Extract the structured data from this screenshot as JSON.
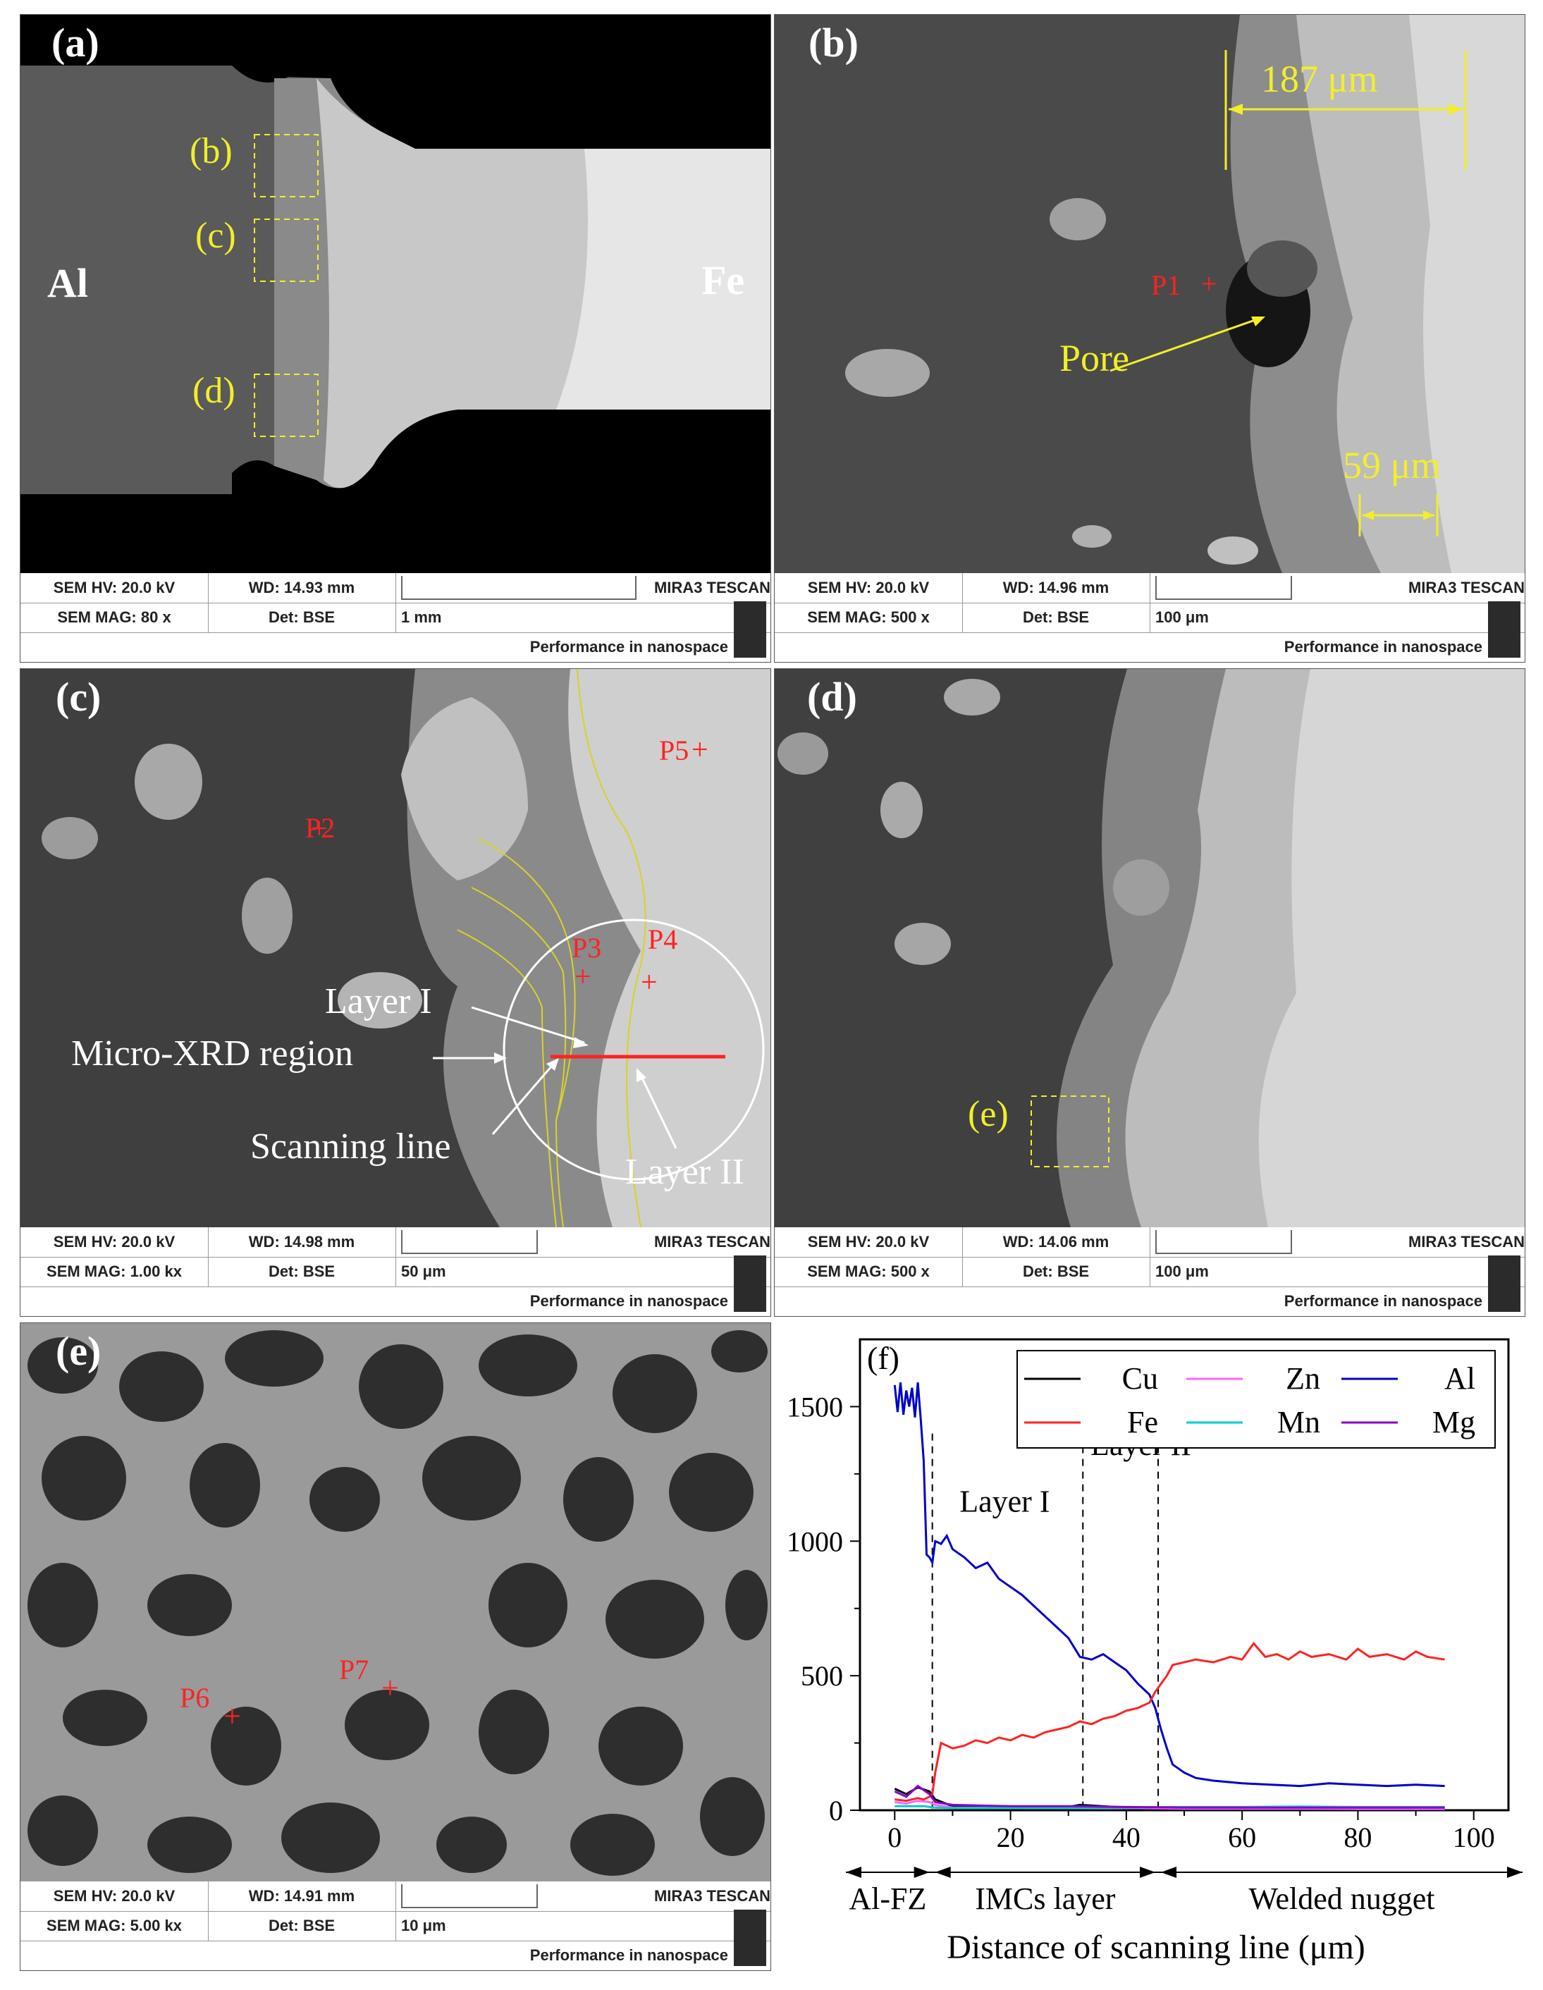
{
  "panels": {
    "a": {
      "label": "(a)",
      "annotations": {
        "b": "(b)",
        "c": "(c)",
        "d": "(d)",
        "al": "Al",
        "fe": "Fe"
      },
      "info": {
        "hv": "SEM HV: 20.0 kV",
        "wd": "WD: 14.93 mm",
        "mag": "SEM MAG: 80 x",
        "det": "Det: BSE",
        "scale": "1 mm",
        "brand": "MIRA3 TESCAN",
        "perf": "Performance in nanospace"
      }
    },
    "b": {
      "label": "(b)",
      "annotations": {
        "w187": "187 μm",
        "p1": "P1",
        "pore": "Pore",
        "w59": "59 μm"
      },
      "info": {
        "hv": "SEM HV: 20.0 kV",
        "wd": "WD: 14.96 mm",
        "mag": "SEM MAG: 500 x",
        "det": "Det: BSE",
        "scale": "100 μm",
        "brand": "MIRA3 TESCAN",
        "perf": "Performance in nanospace"
      }
    },
    "c": {
      "label": "(c)",
      "annotations": {
        "p2": "P2",
        "p3": "P3",
        "p4": "P4",
        "p5": "P5",
        "layer1": "Layer I",
        "microxrd": "Micro-XRD region",
        "scanline": "Scanning line",
        "layer2": "Layer II"
      },
      "info": {
        "hv": "SEM HV: 20.0 kV",
        "wd": "WD: 14.98 mm",
        "mag": "SEM MAG: 1.00 kx",
        "det": "Det: BSE",
        "scale": "50 μm",
        "brand": "MIRA3 TESCAN",
        "perf": "Performance in nanospace"
      }
    },
    "d": {
      "label": "(d)",
      "annotations": {
        "e": "(e)"
      },
      "info": {
        "hv": "SEM HV: 20.0 kV",
        "wd": "WD: 14.06 mm",
        "mag": "SEM MAG: 500 x",
        "det": "Det: BSE",
        "scale": "100 μm",
        "brand": "MIRA3 TESCAN",
        "perf": "Performance in nanospace"
      }
    },
    "e": {
      "label": "(e)",
      "annotations": {
        "p6": "P6",
        "p7": "P7"
      },
      "info": {
        "hv": "SEM HV: 20.0 kV",
        "wd": "WD: 14.91 mm",
        "mag": "SEM MAG: 5.00 kx",
        "det": "Det: BSE",
        "scale": "10 μm",
        "brand": "MIRA3 TESCAN",
        "perf": "Performance in nanospace"
      }
    }
  },
  "chart_data": {
    "type": "line",
    "label": "(f)",
    "xlabel": "Distance of scanning line (μm)",
    "xlim": [
      -6,
      106
    ],
    "ylim": [
      0,
      1750
    ],
    "x_ticks": [
      0,
      20,
      40,
      60,
      80,
      100
    ],
    "y_ticks": [
      0,
      500,
      1000,
      1500
    ],
    "region_markers": [
      6.5,
      32.5,
      45.5
    ],
    "region_labels": [
      {
        "text": "Layer I",
        "x": 19,
        "y": 1110
      },
      {
        "text": "Layer II",
        "x": 42.5,
        "y": 1320
      }
    ],
    "zones": [
      {
        "text": "Al-FZ",
        "from": -6,
        "to": 6.5
      },
      {
        "text": "IMCs layer",
        "from": 6.5,
        "to": 45.5
      },
      {
        "text": "Welded nugget",
        "from": 45.5,
        "to": 106
      }
    ],
    "series": [
      {
        "name": "Cu",
        "color": "#000000",
        "x": [
          0,
          2,
          4,
          6,
          7,
          10,
          20,
          30,
          32,
          40,
          50,
          60,
          70,
          80,
          90,
          95
        ],
        "values": [
          80,
          60,
          85,
          70,
          40,
          15,
          10,
          12,
          20,
          10,
          8,
          10,
          8,
          8,
          8,
          8
        ]
      },
      {
        "name": "Zn",
        "color": "#ff66ff",
        "x": [
          0,
          2,
          4,
          6,
          7,
          10,
          20,
          30,
          40,
          50,
          60,
          70,
          80,
          90,
          95
        ],
        "values": [
          30,
          25,
          35,
          30,
          20,
          10,
          8,
          10,
          8,
          6,
          6,
          6,
          5,
          5,
          5
        ]
      },
      {
        "name": "Al",
        "color": "#0000cc",
        "x": [
          0,
          0.5,
          1,
          1.5,
          2,
          2.5,
          3,
          3.5,
          4,
          4.5,
          5,
          5.5,
          6,
          6.5,
          7,
          8,
          9,
          10,
          12,
          14,
          16,
          18,
          20,
          22,
          24,
          26,
          28,
          30,
          32,
          34,
          36,
          38,
          40,
          42,
          44,
          45,
          46,
          47,
          48,
          50,
          52,
          55,
          60,
          65,
          70,
          75,
          80,
          85,
          90,
          95
        ],
        "values": [
          1580,
          1480,
          1590,
          1470,
          1560,
          1500,
          1570,
          1460,
          1590,
          1450,
          1300,
          950,
          940,
          920,
          1000,
          990,
          1020,
          970,
          940,
          900,
          920,
          860,
          830,
          800,
          760,
          720,
          680,
          640,
          570,
          560,
          580,
          550,
          520,
          470,
          430,
          380,
          300,
          230,
          170,
          140,
          120,
          110,
          100,
          95,
          90,
          100,
          95,
          90,
          95,
          90
        ]
      },
      {
        "name": "Fe",
        "color": "#ff2222",
        "x": [
          0,
          2,
          4,
          5,
          6,
          6.5,
          7,
          8,
          10,
          12,
          14,
          16,
          18,
          20,
          22,
          24,
          26,
          28,
          30,
          32,
          34,
          36,
          38,
          40,
          42,
          44,
          45,
          46,
          47,
          48,
          50,
          52,
          55,
          58,
          60,
          62,
          64,
          66,
          68,
          70,
          72,
          75,
          78,
          80,
          82,
          85,
          88,
          90,
          92,
          95
        ],
        "values": [
          40,
          35,
          45,
          40,
          50,
          60,
          140,
          250,
          230,
          240,
          260,
          250,
          270,
          260,
          280,
          270,
          290,
          300,
          310,
          330,
          320,
          340,
          350,
          370,
          380,
          400,
          440,
          470,
          500,
          540,
          550,
          560,
          550,
          570,
          560,
          620,
          570,
          580,
          560,
          590,
          570,
          580,
          560,
          600,
          570,
          580,
          560,
          590,
          570,
          560
        ]
      },
      {
        "name": "Mn",
        "color": "#00cccc",
        "x": [
          0,
          5,
          7,
          10,
          20,
          30,
          40,
          50,
          60,
          70,
          80,
          90,
          95
        ],
        "values": [
          15,
          15,
          10,
          8,
          8,
          8,
          10,
          12,
          12,
          14,
          12,
          12,
          12
        ]
      },
      {
        "name": "Mg",
        "color": "#8800cc",
        "x": [
          0,
          2,
          4,
          6,
          7,
          10,
          20,
          30,
          40,
          50,
          60,
          70,
          80,
          90,
          95
        ],
        "values": [
          70,
          50,
          90,
          60,
          30,
          20,
          15,
          15,
          12,
          10,
          10,
          10,
          10,
          10,
          10
        ]
      }
    ]
  }
}
